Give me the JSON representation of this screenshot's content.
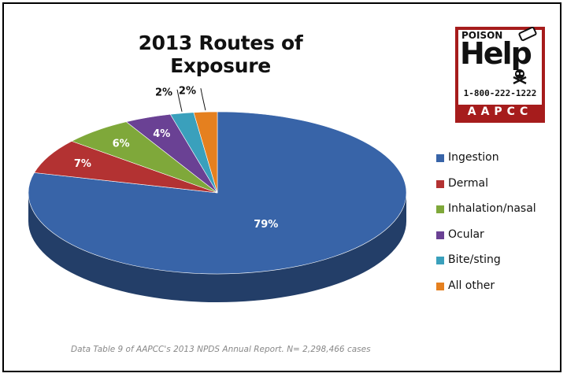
{
  "chart_data": {
    "type": "pie",
    "title": "2013 Routes of Exposure",
    "categories": [
      "Ingestion",
      "Dermal",
      "Inhalation/nasal",
      "Ocular",
      "Bite/sting",
      "All other"
    ],
    "values": [
      79,
      7,
      6,
      4,
      2,
      2
    ],
    "data_labels": [
      "79%",
      "7%",
      "6%",
      "4%",
      "2%",
      "2%"
    ],
    "colors": [
      "#3864a8",
      "#b33232",
      "#7fa83a",
      "#6a4194",
      "#3aa0bc",
      "#e5801f"
    ],
    "legend_position": "right",
    "style": "3d-pie"
  },
  "footnote": "Data Table 9 of AAPCC's 2013 NPDS Annual Report.  N= 2,298,466 cases",
  "logo": {
    "top_text": "POISON",
    "big_text": "Help",
    "phone": "1-800-222-1222",
    "org": "AAPCC"
  }
}
